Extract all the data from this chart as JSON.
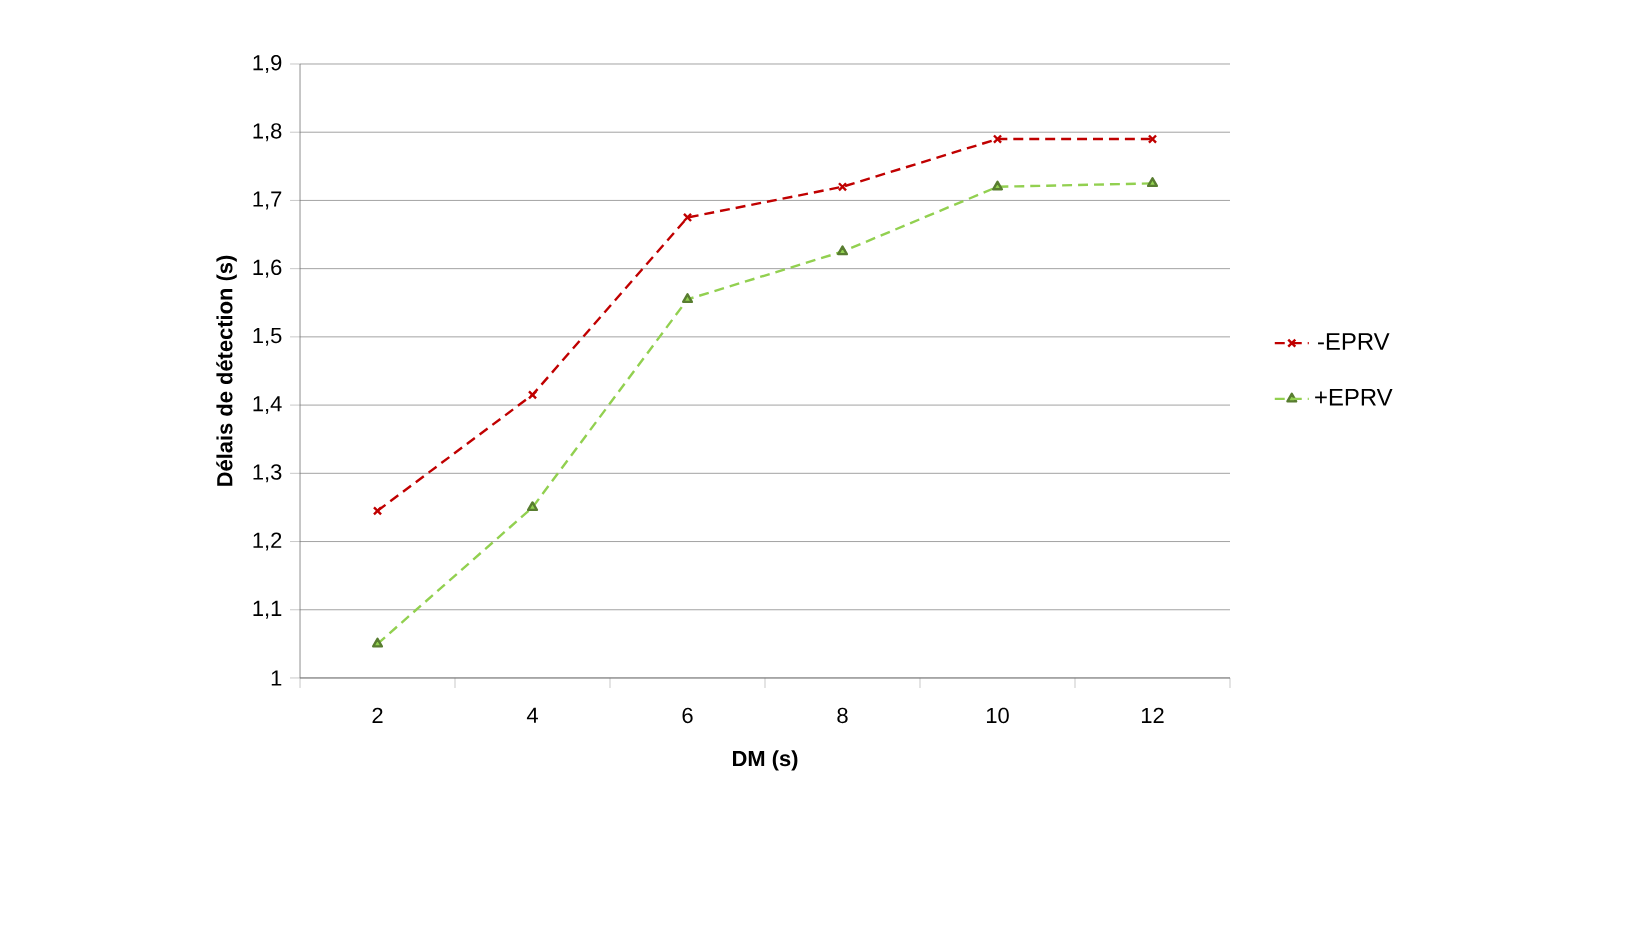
{
  "chart_data": {
    "type": "line",
    "xlabel": "DM (s)",
    "ylabel": "Délais de détection (s)",
    "categories": [
      "2",
      "4",
      "6",
      "8",
      "10",
      "12"
    ],
    "series": [
      {
        "name": "-EPRV",
        "color": "#c00000",
        "marker": "cross",
        "line_style": "dashed",
        "values": [
          1.245,
          1.415,
          1.675,
          1.72,
          1.79,
          1.79
        ]
      },
      {
        "name": "+EPRV",
        "color": "#92d050",
        "marker": "triangle",
        "line_style": "dashed",
        "values": [
          1.05,
          1.25,
          1.555,
          1.625,
          1.72,
          1.725
        ]
      }
    ],
    "ylim": [
      1,
      1.9
    ],
    "yticks": [
      1,
      {
        "value": 1.1,
        "label": "1,1"
      },
      {
        "value": 1.2,
        "label": "1,2"
      },
      {
        "value": 1.3,
        "label": "1,3"
      },
      {
        "value": 1.4,
        "label": "1,4"
      },
      {
        "value": 1.5,
        "label": "1,5"
      },
      {
        "value": 1.6,
        "label": "1,6"
      },
      {
        "value": 1.7,
        "label": "1,7"
      },
      {
        "value": 1.8,
        "label": "1,8"
      },
      {
        "value": 1.9,
        "label": "1,9"
      }
    ],
    "grid": "y",
    "legend": "right"
  }
}
